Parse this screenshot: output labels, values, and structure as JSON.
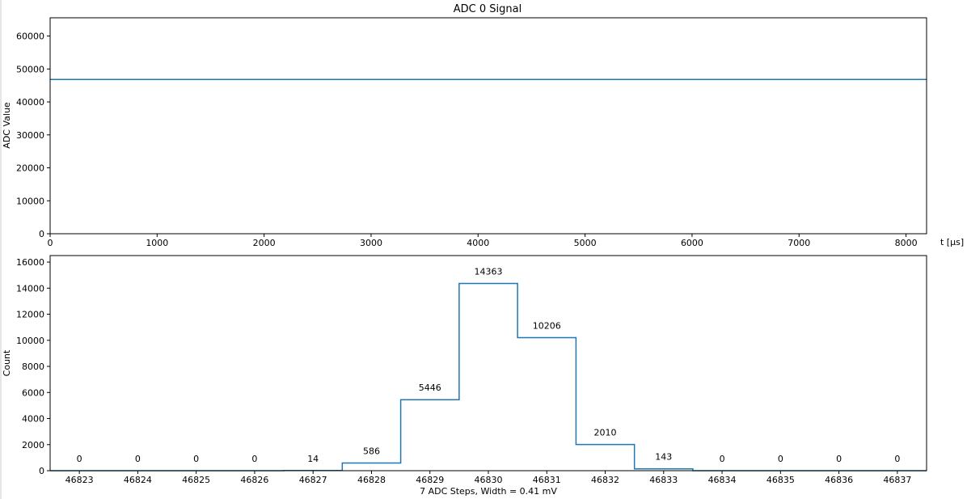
{
  "chart_data": [
    {
      "type": "line",
      "title": "ADC 0 Signal",
      "xlabel": "t [μs]",
      "ylabel": "ADC Value",
      "xlim": [
        0,
        8192
      ],
      "ylim": [
        0,
        65535
      ],
      "xticks": [
        0,
        1000,
        2000,
        3000,
        4000,
        5000,
        6000,
        7000,
        8000
      ],
      "yticks": [
        0,
        10000,
        20000,
        30000,
        40000,
        50000,
        60000
      ],
      "series": [
        {
          "x": [
            0,
            8192
          ],
          "y": [
            46830,
            46830
          ],
          "color": "#1f77b4"
        }
      ],
      "grid": false
    },
    {
      "type": "bar",
      "title": "",
      "xlabel": "7 ADC Steps, Width = 0.41 mV",
      "ylabel": "Count",
      "categories": [
        "46823",
        "46824",
        "46825",
        "46826",
        "46827",
        "46828",
        "46829",
        "46830",
        "46831",
        "46832",
        "46833",
        "46834",
        "46835",
        "46836",
        "46837"
      ],
      "values": [
        0,
        0,
        0,
        0,
        14,
        586,
        5446,
        14363,
        10206,
        2010,
        143,
        0,
        0,
        0,
        0
      ],
      "ylim": [
        0,
        16500
      ],
      "yticks": [
        0,
        2000,
        4000,
        6000,
        8000,
        10000,
        12000,
        14000,
        16000
      ],
      "style": "step",
      "color": "#1f77b4",
      "grid": false
    }
  ]
}
